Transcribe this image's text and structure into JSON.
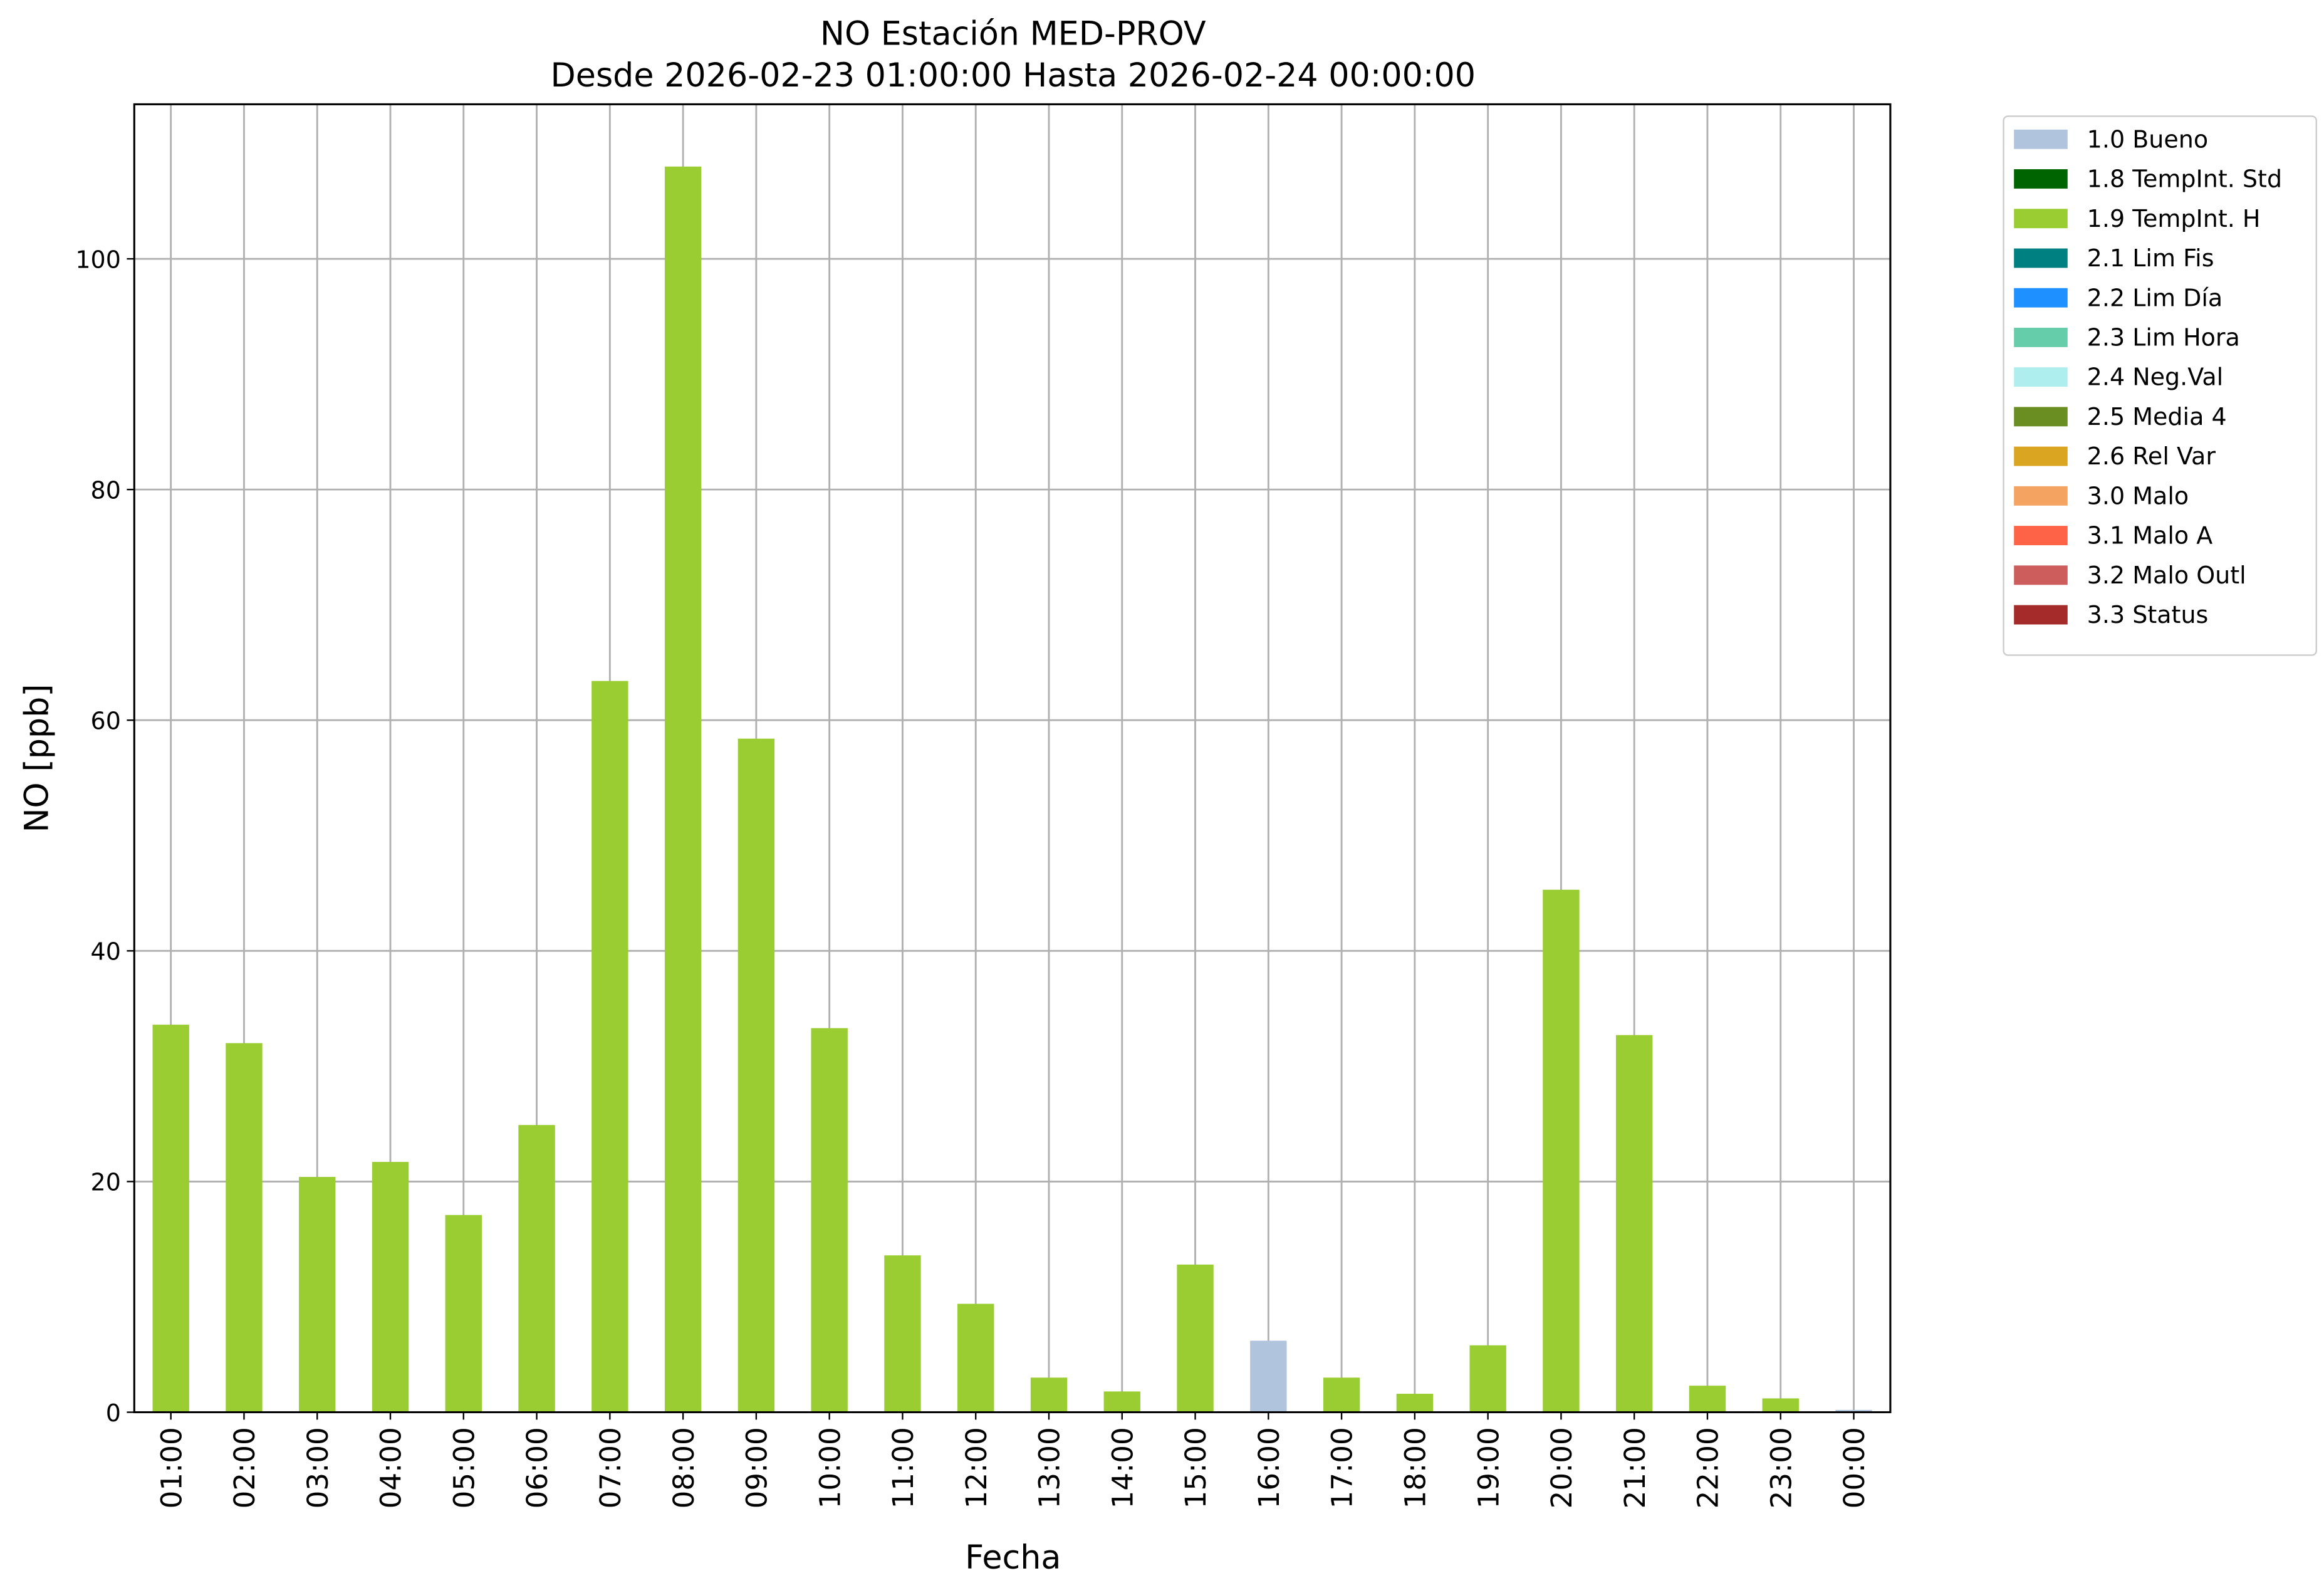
{
  "chart_data": {
    "type": "stacked_bar",
    "title": "NO Estación MED-PROV",
    "subtitle": "Desde 2026-02-23 01:00:00 Hasta 2026-02-24 00:00:00",
    "x_label": "Fecha",
    "y_label": "NO [ppb]",
    "categories": [
      "01:00",
      "02:00",
      "03:00",
      "04:00",
      "05:00",
      "06:00",
      "07:00",
      "08:00",
      "09:00",
      "10:00",
      "11:00",
      "12:00",
      "13:00",
      "14:00",
      "15:00",
      "16:00",
      "17:00",
      "18:00",
      "19:00",
      "20:00",
      "21:00",
      "22:00",
      "23:00",
      "00:00"
    ],
    "series": [
      {
        "name": "1.0 Bueno",
        "color": "#b0c4de",
        "values": [
          null,
          null,
          null,
          null,
          null,
          null,
          null,
          null,
          null,
          null,
          null,
          null,
          null,
          null,
          null,
          6.2,
          null,
          null,
          null,
          null,
          null,
          null,
          null,
          0.2
        ]
      },
      {
        "name": "1.8 TempInt. Std",
        "color": "#006400",
        "values": [
          null,
          null,
          null,
          null,
          null,
          null,
          null,
          null,
          null,
          null,
          null,
          null,
          null,
          null,
          null,
          null,
          null,
          null,
          null,
          null,
          null,
          null,
          null,
          null
        ]
      },
      {
        "name": "1.9 TempInt. H",
        "color": "#9acd32",
        "values": [
          33.6,
          32.0,
          20.4,
          21.7,
          17.1,
          24.9,
          63.4,
          108.0,
          58.4,
          33.3,
          13.6,
          9.4,
          3.0,
          1.8,
          12.8,
          null,
          3.0,
          1.6,
          5.8,
          45.3,
          32.7,
          2.3,
          1.2,
          null
        ]
      },
      {
        "name": "2.1 Lim Fis",
        "color": "#008080",
        "values": [
          null,
          null,
          null,
          null,
          null,
          null,
          null,
          null,
          null,
          null,
          null,
          null,
          null,
          null,
          null,
          null,
          null,
          null,
          null,
          null,
          null,
          null,
          null,
          null
        ]
      },
      {
        "name": "2.2 Lim Día",
        "color": "#1e90ff",
        "values": [
          null,
          null,
          null,
          null,
          null,
          null,
          null,
          null,
          null,
          null,
          null,
          null,
          null,
          null,
          null,
          null,
          null,
          null,
          null,
          null,
          null,
          null,
          null,
          null
        ]
      },
      {
        "name": "2.3 Lim Hora",
        "color": "#66cdaa",
        "values": [
          null,
          null,
          null,
          null,
          null,
          null,
          null,
          null,
          null,
          null,
          null,
          null,
          null,
          null,
          null,
          null,
          null,
          null,
          null,
          null,
          null,
          null,
          null,
          null
        ]
      },
      {
        "name": "2.4 Neg.Val",
        "color": "#afeeee",
        "values": [
          null,
          null,
          null,
          null,
          null,
          null,
          null,
          null,
          null,
          null,
          null,
          null,
          null,
          null,
          null,
          null,
          null,
          null,
          null,
          null,
          null,
          null,
          null,
          null
        ]
      },
      {
        "name": "2.5 Media 4",
        "color": "#6b8e23",
        "values": [
          null,
          null,
          null,
          null,
          null,
          null,
          null,
          null,
          null,
          null,
          null,
          null,
          null,
          null,
          null,
          null,
          null,
          null,
          null,
          null,
          null,
          null,
          null,
          null
        ]
      },
      {
        "name": "2.6 Rel Var",
        "color": "#daa520",
        "values": [
          null,
          null,
          null,
          null,
          null,
          null,
          null,
          null,
          null,
          null,
          null,
          null,
          null,
          null,
          null,
          null,
          null,
          null,
          null,
          null,
          null,
          null,
          null,
          null
        ]
      },
      {
        "name": "3.0 Malo",
        "color": "#f4a460",
        "values": [
          null,
          null,
          null,
          null,
          null,
          null,
          null,
          null,
          null,
          null,
          null,
          null,
          null,
          null,
          null,
          null,
          null,
          null,
          null,
          null,
          null,
          null,
          null,
          null
        ]
      },
      {
        "name": "3.1 Malo A",
        "color": "#ff6347",
        "values": [
          null,
          null,
          null,
          null,
          null,
          null,
          null,
          null,
          null,
          null,
          null,
          null,
          null,
          null,
          null,
          null,
          null,
          null,
          null,
          null,
          null,
          null,
          null,
          null
        ]
      },
      {
        "name": "3.2 Malo Outl",
        "color": "#cd5c5c",
        "values": [
          null,
          null,
          null,
          null,
          null,
          null,
          null,
          null,
          null,
          null,
          null,
          null,
          null,
          null,
          null,
          null,
          null,
          null,
          null,
          null,
          null,
          null,
          null,
          null
        ]
      },
      {
        "name": "3.3 Status",
        "color": "#a52a2a",
        "values": [
          null,
          null,
          null,
          null,
          null,
          null,
          null,
          null,
          null,
          null,
          null,
          null,
          null,
          null,
          null,
          null,
          null,
          null,
          null,
          null,
          null,
          null,
          null,
          null
        ]
      }
    ],
    "ylim": [
      0,
      113.4
    ],
    "yticks": [
      0,
      20,
      40,
      60,
      80,
      100
    ],
    "grid": true,
    "legend": "outside-right"
  }
}
